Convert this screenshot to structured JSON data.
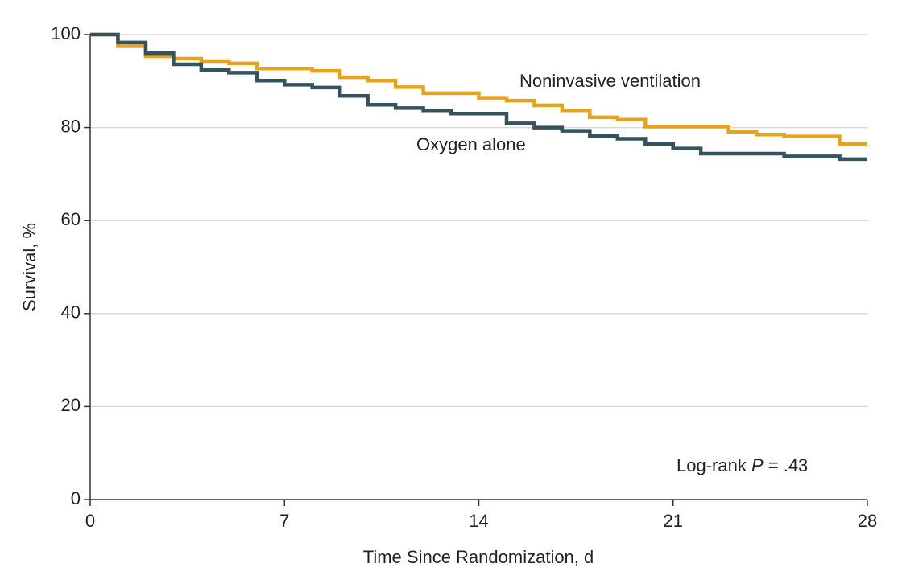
{
  "chart_data": {
    "type": "step",
    "x_label": "Time Since Randomization, d",
    "y_label": "Survival, %",
    "x": [
      0,
      1,
      2,
      3,
      4,
      5,
      6,
      7,
      8,
      9,
      10,
      11,
      12,
      13,
      14,
      15,
      16,
      17,
      18,
      19,
      20,
      21,
      22,
      23,
      24,
      25,
      26,
      27,
      28
    ],
    "series": [
      {
        "name": "Noninvasive ventilation",
        "color": "#e8a31e",
        "values": [
          100,
          97.5,
          95.3,
          94.8,
          94.3,
          93.8,
          92.7,
          92.7,
          92.2,
          90.8,
          90.1,
          88.7,
          87.4,
          87.4,
          86.4,
          85.8,
          84.8,
          83.7,
          82.2,
          81.7,
          80.2,
          80.2,
          80.2,
          79.1,
          78.5,
          78.1,
          78.1,
          76.5,
          76.5
        ]
      },
      {
        "name": "Oxygen alone",
        "color": "#34535d",
        "values": [
          100,
          98.3,
          96.0,
          93.6,
          92.4,
          91.8,
          90.1,
          89.2,
          88.6,
          86.8,
          84.9,
          84.2,
          83.7,
          83.0,
          83.0,
          80.9,
          80.0,
          79.3,
          78.2,
          77.6,
          76.5,
          75.5,
          74.4,
          74.4,
          74.4,
          73.8,
          73.8,
          73.2,
          73.2
        ]
      }
    ],
    "annotation": [
      "Log-rank ",
      "P",
      " = .43"
    ],
    "xlim": [
      0,
      28
    ],
    "xticks": [
      0,
      7,
      14,
      21,
      28
    ],
    "ylim": [
      0,
      100
    ],
    "yticks": [
      0,
      20,
      40,
      60,
      80,
      100
    ],
    "grid": true
  }
}
